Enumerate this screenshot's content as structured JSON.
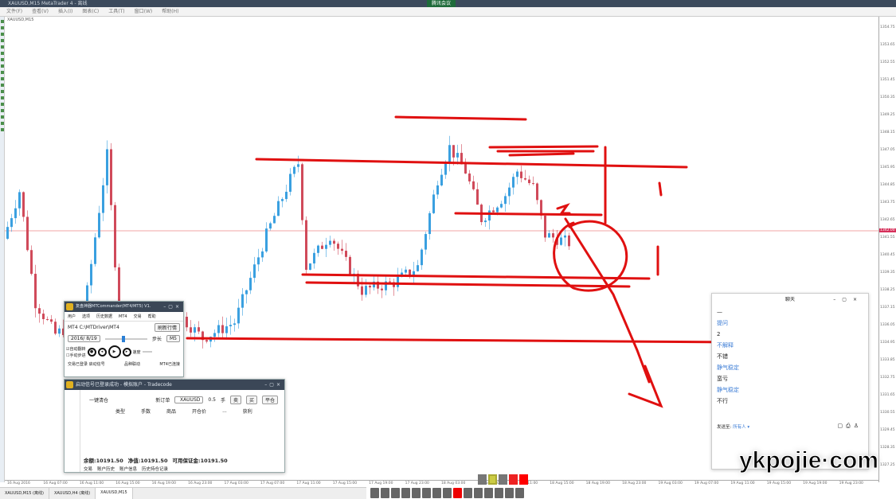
{
  "window": {
    "title": "XAUUSD,M15 MetaTrader 4 - 离线",
    "recording": "腾讯会议"
  },
  "menu": [
    "文件(F)",
    "查看(V)",
    "插入(I)",
    "图表(C)",
    "工具(T)",
    "窗口(W)",
    "帮助(H)"
  ],
  "chart": {
    "title": "XAUUSD,M15",
    "price_labels": [
      "1354.75",
      "1353.65",
      "1352.55",
      "1351.45",
      "1350.35",
      "1349.25",
      "1348.15",
      "1347.05",
      "1345.95",
      "1344.85",
      "1343.75",
      "1342.65",
      "1341.55",
      "1340.45",
      "1339.35",
      "1338.25",
      "1337.15",
      "1336.05",
      "1334.95",
      "1333.85",
      "1332.75",
      "1331.65",
      "1330.55",
      "1329.45",
      "1328.35",
      "1327.25"
    ],
    "current_price": "1342.00",
    "price_path": [
      [
        0,
        1341.5
      ],
      [
        4,
        1344.5
      ],
      [
        8,
        1337.5
      ],
      [
        13,
        1335.5
      ],
      [
        20,
        1336.5
      ],
      [
        26,
        1346.75
      ],
      [
        29,
        1336.75
      ],
      [
        32,
        1336.25
      ],
      [
        38,
        1335.25
      ],
      [
        44,
        1336.75
      ],
      [
        50,
        1335.25
      ],
      [
        58,
        1336.25
      ],
      [
        66,
        1341.75
      ],
      [
        72,
        1345.25
      ],
      [
        74,
        1346.25
      ],
      [
        76,
        1339.75
      ],
      [
        82,
        1341.75
      ],
      [
        90,
        1338.25
      ],
      [
        98,
        1338.75
      ],
      [
        104,
        1339.75
      ],
      [
        109,
        1345.25
      ],
      [
        112,
        1347.25
      ],
      [
        116,
        1345.75
      ],
      [
        120,
        1342.75
      ],
      [
        126,
        1344.25
      ],
      [
        129,
        1345.75
      ],
      [
        133,
        1344.75
      ],
      [
        136,
        1341.75
      ],
      [
        142,
        1341.25
      ]
    ],
    "colors": {
      "bull": "#3aa0e0",
      "bear": "#d04a5a",
      "annotation": "#e01010",
      "price_line": "#e88"
    },
    "time_labels": [
      "16 Aug 2016",
      "16 Aug 07:00",
      "16 Aug 11:00",
      "16 Aug 15:00",
      "16 Aug 19:00",
      "16 Aug 23:00",
      "17 Aug 03:00",
      "17 Aug 07:00",
      "17 Aug 11:00",
      "17 Aug 15:00",
      "17 Aug 19:00",
      "17 Aug 23:00",
      "18 Aug 03:00",
      "18 Aug 07:00",
      "18 Aug 11:00",
      "18 Aug 15:00",
      "18 Aug 19:00",
      "18 Aug 23:00",
      "19 Aug 03:00",
      "19 Aug 07:00",
      "19 Aug 11:00",
      "19 Aug 15:00",
      "19 Aug 19:00",
      "19 Aug 23:00"
    ]
  },
  "tabs": [
    "XAUUSD,M15 (离线)",
    "XAUUSD,H4 (离线)",
    "XAUUSD,M15"
  ],
  "commander": {
    "title": "复盘神器MTCommander(MT4/MT5) V1.",
    "menu": [
      "用户",
      "选项",
      "历史数据",
      "MT4",
      "交易",
      "帮助"
    ],
    "path": "MT4 C:\\MTDriver\\MT4",
    "refresh": "刷新行情",
    "date": "2016/ 8/19",
    "step_label": "步长",
    "step": "M5",
    "auto_flip": "自动翻转",
    "manual_step": "手动步进",
    "speed": "速度",
    "status_left": "交易已登录 启动信号",
    "link": "品种联动",
    "status_right": "MT4已连接"
  },
  "order": {
    "title": "启动信号已登录成功 - 模拟账户 - Tradecode",
    "close_all": "一键清仓",
    "new_order": "新订单",
    "symbol": "XAUUSD",
    "lots": "0.5",
    "lot_unit": "手",
    "sell": "卖",
    "buy": "买",
    "close": "平仓",
    "headers": [
      "类型",
      "手数",
      "商品",
      "开仓价",
      "...",
      "获利"
    ],
    "balance": "余额:10191.50",
    "equity": "净值:10191.50",
    "free_margin": "可用保证金:10191.50",
    "tabs": [
      "交易",
      "账户历史",
      "账户信息",
      "历史持仓记录"
    ]
  },
  "chat": {
    "title": "聊天",
    "messages": [
      {
        "text": "—"
      },
      {
        "name": "提问"
      },
      {
        "text": "2"
      },
      {
        "name": "不解释"
      },
      {
        "text": "不错"
      },
      {
        "name": "静气稳定"
      },
      {
        "text": "蛮亏"
      },
      {
        "name": "静气稳定"
      },
      {
        "text": "不行"
      }
    ],
    "send_to_label": "发送至:",
    "send_to": "所有人 ▾"
  },
  "watermark": "ykpojie·com"
}
